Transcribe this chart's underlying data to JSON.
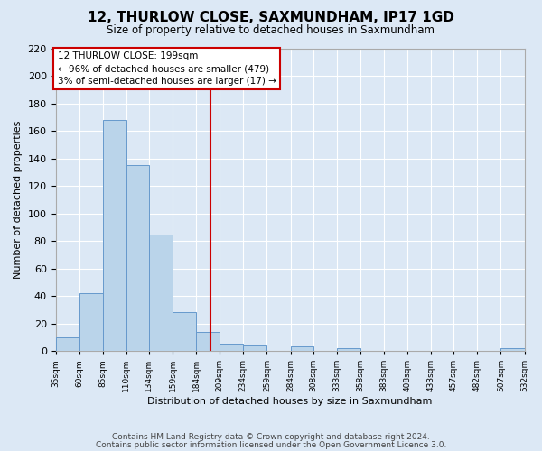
{
  "title": "12, THURLOW CLOSE, SAXMUNDHAM, IP17 1GD",
  "subtitle": "Size of property relative to detached houses in Saxmundham",
  "xlabel": "Distribution of detached houses by size in Saxmundham",
  "ylabel": "Number of detached properties",
  "footer_line1": "Contains HM Land Registry data © Crown copyright and database right 2024.",
  "footer_line2": "Contains public sector information licensed under the Open Government Licence 3.0.",
  "annotation_line1": "12 THURLOW CLOSE: 199sqm",
  "annotation_line2": "← 96% of detached houses are smaller (479)",
  "annotation_line3": "3% of semi-detached houses are larger (17) →",
  "red_line_x": 199,
  "bar_edges": [
    35,
    60,
    85,
    110,
    134,
    159,
    184,
    209,
    234,
    259,
    284,
    308,
    333,
    358,
    383,
    408,
    433,
    457,
    482,
    507,
    532
  ],
  "bar_heights": [
    10,
    42,
    168,
    135,
    85,
    28,
    14,
    5,
    4,
    0,
    3,
    0,
    2,
    0,
    0,
    0,
    0,
    0,
    0,
    2
  ],
  "bar_color": "#bad4ea",
  "bar_edgecolor": "#6699cc",
  "red_line_color": "#cc0000",
  "annotation_box_edgecolor": "#cc0000",
  "annotation_box_facecolor": "#ffffff",
  "background_color": "#dce8f5",
  "grid_color": "#ffffff",
  "ylim": [
    0,
    220
  ],
  "yticks": [
    0,
    20,
    40,
    60,
    80,
    100,
    120,
    140,
    160,
    180,
    200,
    220
  ]
}
